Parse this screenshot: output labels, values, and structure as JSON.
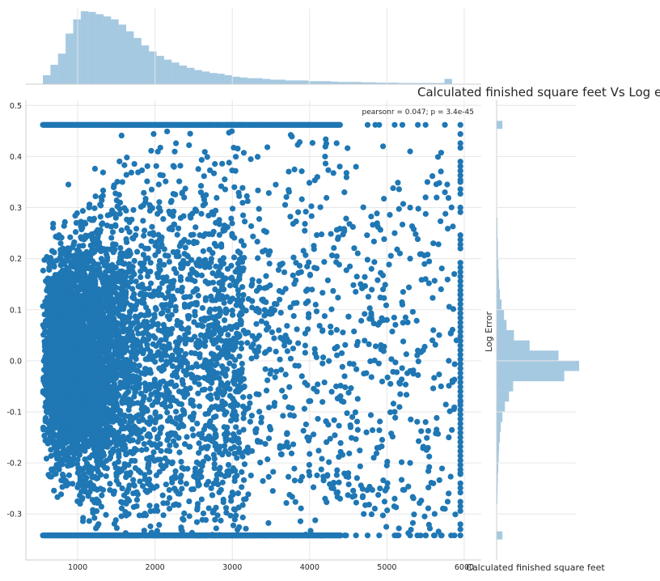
{
  "chart_data": {
    "type": "scatter",
    "title": "Calculated finished square feet Vs Log error",
    "xlabel": "Calculated finished square feet",
    "ylabel": "Log Error",
    "annotation": "pearsonr = 0.047; p = 3.4e-45",
    "xlim": [
      330,
      6220
    ],
    "ylim": [
      -0.39,
      0.51
    ],
    "x_ticks": [
      1000,
      2000,
      3000,
      4000,
      5000,
      6000
    ],
    "x_tick_labels": [
      "1000",
      "2000",
      "3000",
      "4000",
      "5000",
      "6000"
    ],
    "y_ticks": [
      -0.3,
      -0.2,
      -0.1,
      0.0,
      0.1,
      0.2,
      0.3,
      0.4,
      0.5
    ],
    "y_tick_labels": [
      "-0.3",
      "-0.2",
      "-0.1",
      "0.0",
      "0.1",
      "0.2",
      "0.3",
      "0.4",
      "0.5"
    ],
    "grid": true,
    "style": "seaborn-whitegrid jointplot",
    "colors": {
      "scatter": "#1f77b4",
      "histogram": "#1f77b4",
      "histogram_alpha": 0.4,
      "grid": "#e6e6e6",
      "spine": "#cccccc",
      "text": "#262626"
    },
    "marginal_x_hist": {
      "bin_edges_start": 550,
      "bin_width": 98,
      "relative_heights": [
        0.12,
        0.26,
        0.41,
        0.68,
        0.87,
        0.98,
        0.97,
        0.94,
        0.91,
        0.87,
        0.8,
        0.71,
        0.62,
        0.52,
        0.44,
        0.38,
        0.33,
        0.29,
        0.25,
        0.22,
        0.19,
        0.17,
        0.15,
        0.14,
        0.12,
        0.1,
        0.09,
        0.08,
        0.08,
        0.07,
        0.06,
        0.06,
        0.05,
        0.05,
        0.05,
        0.04,
        0.04,
        0.04,
        0.035,
        0.03,
        0.03,
        0.03,
        0.025,
        0.025,
        0.02,
        0.02,
        0.02,
        0.015,
        0.015,
        0.015,
        0.015,
        0.015,
        0.015,
        0.07
      ]
    },
    "marginal_y_hist": {
      "bins": [
        {
          "y": 0.462,
          "relative_width": 0.07
        },
        {
          "y": 0.27,
          "relative_width": 0.01
        },
        {
          "y": 0.25,
          "relative_width": 0.01
        },
        {
          "y": 0.23,
          "relative_width": 0.015
        },
        {
          "y": 0.21,
          "relative_width": 0.015
        },
        {
          "y": 0.19,
          "relative_width": 0.02
        },
        {
          "y": 0.17,
          "relative_width": 0.025
        },
        {
          "y": 0.15,
          "relative_width": 0.03
        },
        {
          "y": 0.13,
          "relative_width": 0.04
        },
        {
          "y": 0.11,
          "relative_width": 0.06
        },
        {
          "y": 0.09,
          "relative_width": 0.09
        },
        {
          "y": 0.07,
          "relative_width": 0.12
        },
        {
          "y": 0.05,
          "relative_width": 0.21
        },
        {
          "y": 0.03,
          "relative_width": 0.4
        },
        {
          "y": 0.01,
          "relative_width": 0.75
        },
        {
          "y": -0.01,
          "relative_width": 1.0
        },
        {
          "y": -0.03,
          "relative_width": 0.82
        },
        {
          "y": -0.05,
          "relative_width": 0.2
        },
        {
          "y": -0.07,
          "relative_width": 0.15
        },
        {
          "y": -0.09,
          "relative_width": 0.1
        },
        {
          "y": -0.11,
          "relative_width": 0.07
        },
        {
          "y": -0.13,
          "relative_width": 0.05
        },
        {
          "y": -0.15,
          "relative_width": 0.04
        },
        {
          "y": -0.17,
          "relative_width": 0.03
        },
        {
          "y": -0.19,
          "relative_width": 0.025
        },
        {
          "y": -0.21,
          "relative_width": 0.02
        },
        {
          "y": -0.23,
          "relative_width": 0.015
        },
        {
          "y": -0.25,
          "relative_width": 0.012
        },
        {
          "y": -0.27,
          "relative_width": 0.01
        },
        {
          "y": -0.342,
          "relative_width": 0.07
        }
      ]
    },
    "scatter_summary": {
      "x_clip_min": 550,
      "x_clip_max": 5950,
      "y_clip_min": -0.342,
      "y_clip_max": 0.462,
      "sample_points": [
        [
          4750,
          0.462
        ],
        [
          4850,
          0.462
        ],
        [
          4900,
          0.462
        ],
        [
          5100,
          0.462
        ],
        [
          5200,
          0.462
        ],
        [
          5400,
          0.462
        ],
        [
          5500,
          0.462
        ],
        [
          5750,
          0.462
        ],
        [
          5950,
          0.462
        ],
        [
          4200,
          0.4
        ],
        [
          4950,
          0.42
        ],
        [
          5300,
          0.41
        ],
        [
          4600,
          0.38
        ],
        [
          4100,
          0.36
        ],
        [
          5500,
          0.32
        ],
        [
          5750,
          0.33
        ],
        [
          5950,
          0.35
        ],
        [
          5300,
          0.3
        ],
        [
          4450,
          0.33
        ],
        [
          5100,
          0.25
        ],
        [
          5600,
          0.23
        ],
        [
          5950,
          0.22
        ],
        [
          5300,
          0.2
        ],
        [
          4800,
          0.18
        ],
        [
          5500,
          0.16
        ],
        [
          5700,
          0.14
        ],
        [
          5950,
          0.13
        ],
        [
          5200,
          0.11
        ],
        [
          5000,
          0.08
        ],
        [
          5600,
          0.06
        ],
        [
          5900,
          0.04
        ],
        [
          5400,
          0.02
        ],
        [
          5800,
          0.0
        ],
        [
          5300,
          -0.02
        ],
        [
          5700,
          -0.05
        ],
        [
          5950,
          -0.08
        ],
        [
          5100,
          -0.1
        ],
        [
          5500,
          -0.12
        ],
        [
          5800,
          -0.15
        ],
        [
          4900,
          -0.17
        ],
        [
          5300,
          -0.2
        ],
        [
          5950,
          -0.22
        ],
        [
          5600,
          -0.24
        ],
        [
          5100,
          -0.27
        ],
        [
          5750,
          -0.29
        ],
        [
          4700,
          -0.3
        ],
        [
          5950,
          -0.32
        ],
        [
          4200,
          -0.27
        ],
        [
          4500,
          -0.22
        ],
        [
          4750,
          -0.342
        ],
        [
          4900,
          -0.342
        ],
        [
          5100,
          -0.342
        ],
        [
          5300,
          -0.342
        ],
        [
          5500,
          -0.342
        ],
        [
          5700,
          -0.342
        ],
        [
          5950,
          -0.342
        ],
        [
          4600,
          -0.342
        ],
        [
          4400,
          -0.342
        ]
      ]
    }
  }
}
